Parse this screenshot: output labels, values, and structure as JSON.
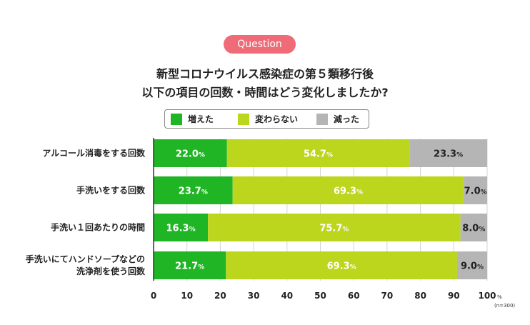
{
  "badge": "Question",
  "title_lines": [
    "新型コロナウイルス感染症の第５類移行後",
    "以下の項目の回数・時間はどう変化しましたか?"
  ],
  "note": "(n=300)",
  "colors": {
    "increased": "#1fb524",
    "unchanged": "#bcd51d",
    "decreased": "#b5b5b5"
  },
  "chart_data": {
    "type": "bar",
    "orientation": "horizontal",
    "stacked": true,
    "categories": [
      [
        "アルコール消毒をする回数"
      ],
      [
        "手洗いをする回数"
      ],
      [
        "手洗い１回あたりの時間"
      ],
      [
        "手洗いにてハンドソープなどの",
        "洗浄剤を使う回数"
      ]
    ],
    "series": [
      {
        "name": "増えた",
        "values": [
          22.0,
          23.7,
          16.3,
          21.7
        ]
      },
      {
        "name": "変わらない",
        "values": [
          54.7,
          69.3,
          75.7,
          69.3
        ]
      },
      {
        "name": "減った",
        "values": [
          23.3,
          7.0,
          8.0,
          9.0
        ]
      }
    ],
    "value_unit": "%",
    "xlim": [
      0,
      100
    ],
    "xticks": [
      "0",
      "10",
      "20",
      "30",
      "40",
      "50",
      "60",
      "70",
      "80",
      "90",
      "100"
    ],
    "xtick_suffix": "%",
    "legend_position": "top",
    "grid": true
  }
}
